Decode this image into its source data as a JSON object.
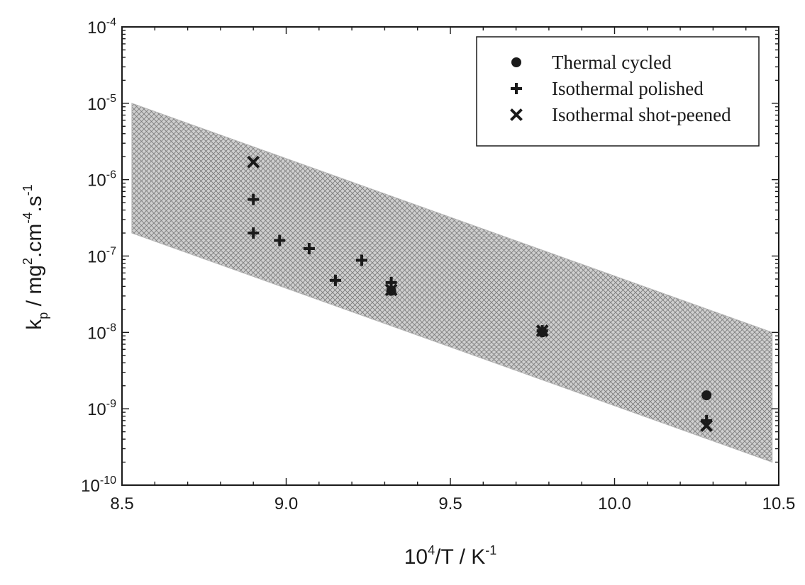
{
  "chart_data": {
    "type": "scatter",
    "x_scale": "linear",
    "y_scale": "log",
    "xlim": [
      8.5,
      10.5
    ],
    "ylim": [
      1e-10,
      0.0001
    ],
    "x_ticks": [
      {
        "value": 8.5,
        "label": "8.5"
      },
      {
        "value": 9.0,
        "label": "9.0"
      },
      {
        "value": 9.5,
        "label": "9.5"
      },
      {
        "value": 10.0,
        "label": "10.0"
      },
      {
        "value": 10.5,
        "label": "10.5"
      }
    ],
    "y_ticks": [
      {
        "value": 0.0001,
        "base": "10",
        "exp": "-4"
      },
      {
        "value": 1e-05,
        "base": "10",
        "exp": "-5"
      },
      {
        "value": 1e-06,
        "base": "10",
        "exp": "-6"
      },
      {
        "value": 1e-07,
        "base": "10",
        "exp": "-7"
      },
      {
        "value": 1e-08,
        "base": "10",
        "exp": "-8"
      },
      {
        "value": 1e-09,
        "base": "10",
        "exp": "-9"
      },
      {
        "value": 1e-10,
        "base": "10",
        "exp": "-10"
      }
    ],
    "xlabel": {
      "main": "10",
      "sup": "4",
      "rest": "/T  / K",
      "sup2": "-1"
    },
    "ylabel": {
      "k": "k",
      "sub": "p",
      "mid": " / mg",
      "sup1": "2",
      "mid2": ".cm",
      "sup2": "-4",
      "mid3": ".s",
      "sup3": "-1"
    },
    "band": {
      "upper": [
        [
          8.53,
          1e-05
        ],
        [
          10.48,
          1e-08
        ]
      ],
      "lower": [
        [
          8.53,
          2e-07
        ],
        [
          10.48,
          2e-10
        ]
      ],
      "fill": "#c8c8c8",
      "hatch": "#8a8a8a"
    },
    "legend_position": "top-right",
    "series": [
      {
        "name": "Thermal cycled",
        "marker": "circle",
        "points": [
          [
            9.32,
            3.5e-08
          ],
          [
            9.78,
            1e-08
          ],
          [
            10.28,
            1.5e-09
          ]
        ]
      },
      {
        "name": "Isothermal polished",
        "marker": "plus",
        "points": [
          [
            8.9,
            5.5e-07
          ],
          [
            8.9,
            2e-07
          ],
          [
            8.98,
            1.6e-07
          ],
          [
            9.07,
            1.25e-07
          ],
          [
            9.15,
            4.8e-08
          ],
          [
            9.23,
            8.8e-08
          ],
          [
            9.32,
            4.5e-08
          ],
          [
            9.78,
            1.05e-08
          ],
          [
            10.28,
            7e-10
          ]
        ]
      },
      {
        "name": "Isothermal shot-peened",
        "marker": "cross",
        "points": [
          [
            8.9,
            1.7e-06
          ],
          [
            9.32,
            3.6e-08
          ],
          [
            9.78,
            1.05e-08
          ],
          [
            10.28,
            6e-10
          ]
        ]
      }
    ],
    "colors": {
      "marker": "#1a1a1a",
      "axis": "#1a1a1a"
    }
  }
}
